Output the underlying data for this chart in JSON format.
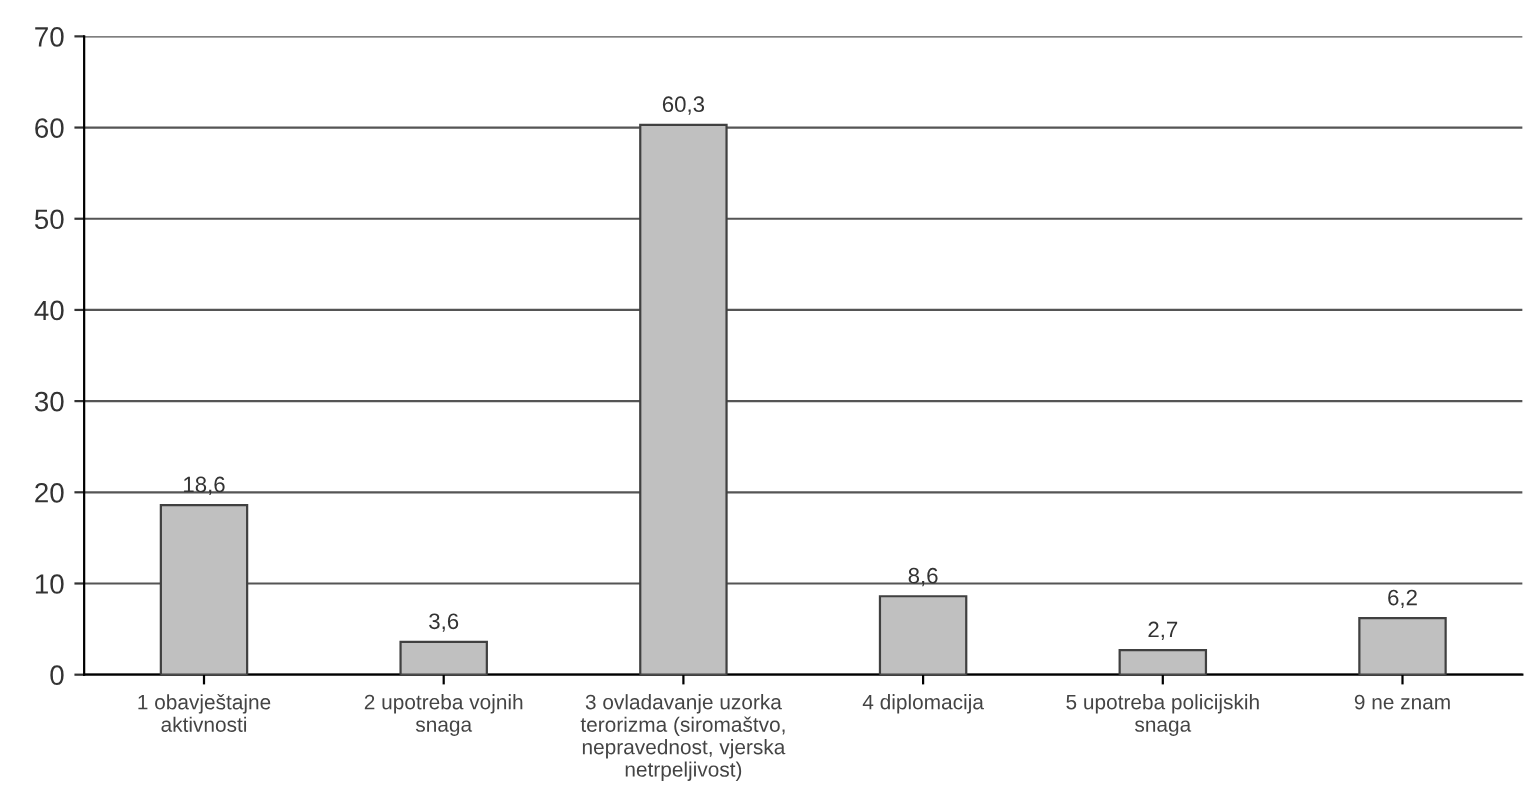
{
  "chart_data": {
    "type": "bar",
    "categories": [
      "1 obavještajne\naktivnosti",
      "2 upotreba vojnih\nsnaga",
      "3 ovladavanje uzorka\nterorizma (siromaštvo,\nnepravednost, vjerska\nnetrpeljivost)",
      "4 diplomacija",
      "5 upotreba policijskih\nsnaga",
      "9 ne znam"
    ],
    "values": [
      18.6,
      3.6,
      60.3,
      8.6,
      2.7,
      6.2
    ],
    "value_labels": [
      "18,6",
      "3,6",
      "60,3",
      "8,6",
      "2,7",
      "6,2"
    ],
    "color": "#c0c0c0",
    "ylim": [
      0,
      70
    ],
    "yticks": [
      0,
      10,
      20,
      30,
      40,
      50,
      60,
      70
    ],
    "grid": "y"
  }
}
